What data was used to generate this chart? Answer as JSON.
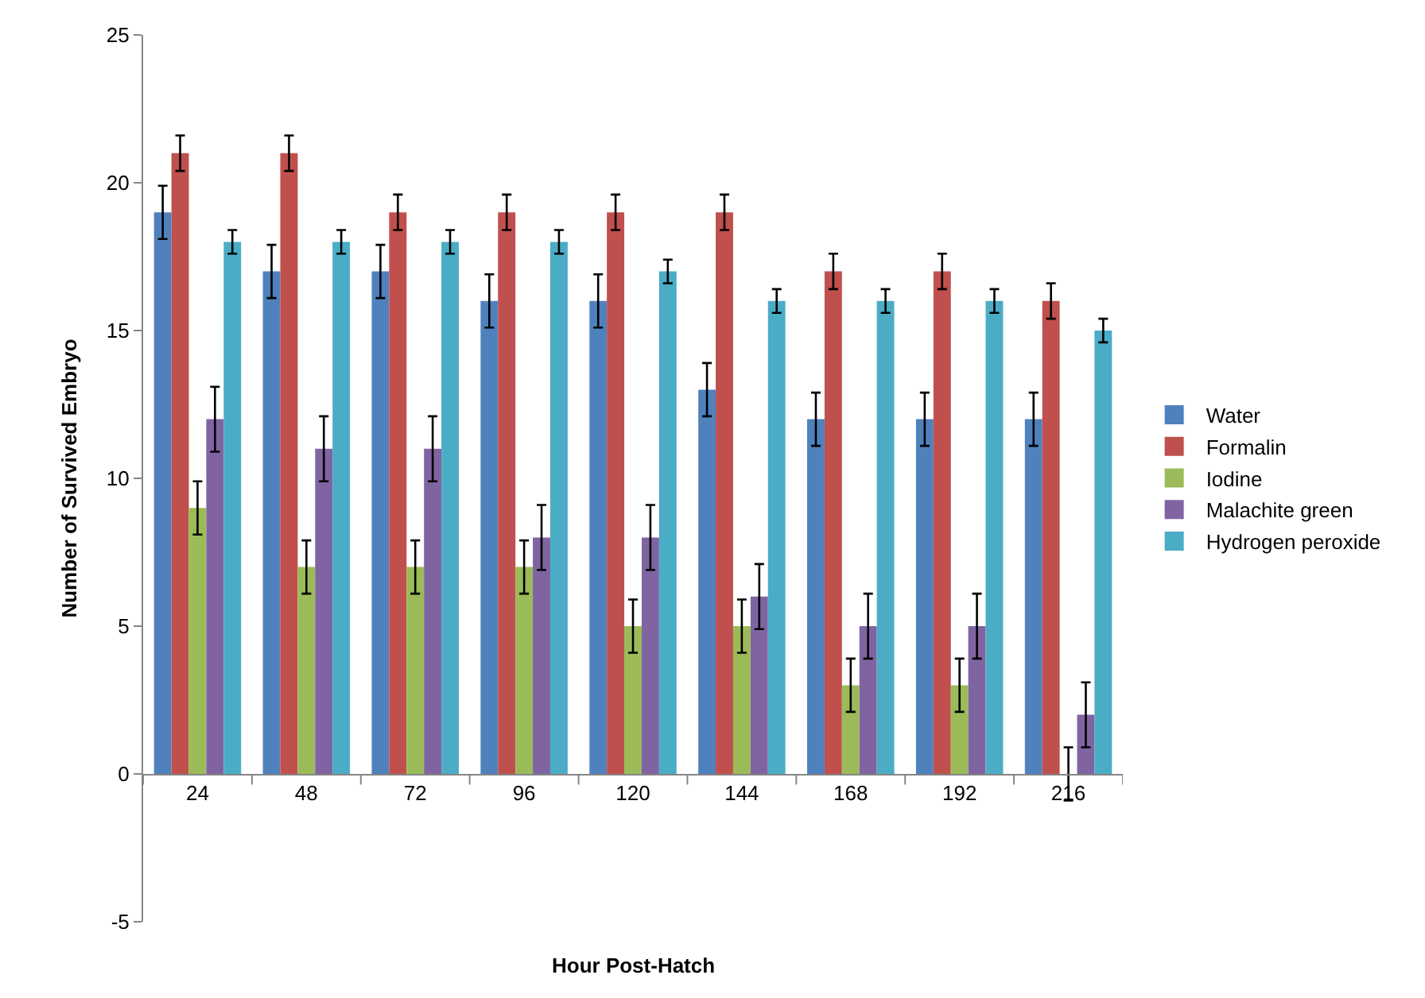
{
  "chart_data": {
    "type": "bar",
    "xlabel": "Hour Post-Hatch",
    "ylabel": "Number of Survived Embryo",
    "categories": [
      "24",
      "48",
      "72",
      "96",
      "120",
      "144",
      "168",
      "192",
      "216"
    ],
    "series": [
      {
        "name": "Water",
        "color": "#4f81bd",
        "values": [
          19,
          17,
          17,
          16,
          16,
          13,
          12,
          12,
          12
        ],
        "errors": [
          0.9,
          0.9,
          0.9,
          0.9,
          0.9,
          0.9,
          0.9,
          0.9,
          0.9
        ]
      },
      {
        "name": "Formalin",
        "color": "#c0504d",
        "values": [
          21,
          21,
          19,
          19,
          19,
          19,
          17,
          17,
          16
        ],
        "errors": [
          0.6,
          0.6,
          0.6,
          0.6,
          0.6,
          0.6,
          0.6,
          0.6,
          0.6
        ]
      },
      {
        "name": "Iodine",
        "color": "#9bbb59",
        "values": [
          9,
          7,
          7,
          7,
          5,
          5,
          3,
          3,
          0
        ],
        "errors": [
          0.9,
          0.9,
          0.9,
          0.9,
          0.9,
          0.9,
          0.9,
          0.9,
          0.9
        ]
      },
      {
        "name": "Malachite green",
        "color": "#8064a2",
        "values": [
          12,
          11,
          11,
          8,
          8,
          6,
          5,
          5,
          2
        ],
        "errors": [
          1.1,
          1.1,
          1.1,
          1.1,
          1.1,
          1.1,
          1.1,
          1.1,
          1.1
        ]
      },
      {
        "name": "Hydrogen peroxide",
        "color": "#4bacc6",
        "values": [
          18,
          18,
          18,
          18,
          17,
          16,
          16,
          16,
          15
        ],
        "errors": [
          0.4,
          0.4,
          0.4,
          0.4,
          0.4,
          0.4,
          0.4,
          0.4,
          0.4
        ]
      }
    ],
    "ylim": [
      -5,
      25
    ],
    "yticks": [
      -5,
      0,
      5,
      10,
      15,
      20,
      25
    ],
    "grid": false,
    "legend": "right"
  }
}
